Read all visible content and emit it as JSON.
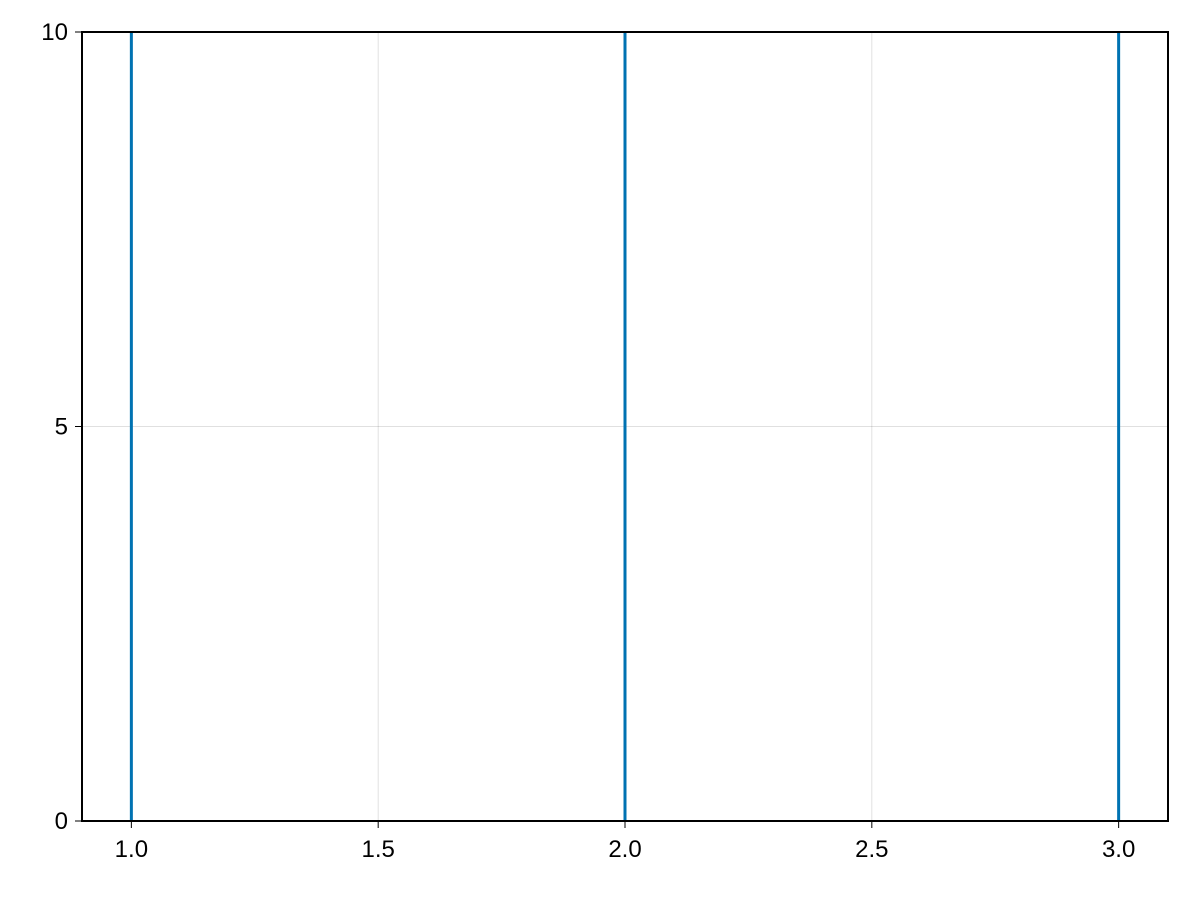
{
  "chart_data": {
    "type": "line",
    "subtype": "vlines",
    "title": "",
    "xlabel": "",
    "ylabel": "",
    "xlim": [
      0.9,
      3.1
    ],
    "ylim": [
      0,
      10
    ],
    "x_ticks": [
      1.0,
      1.5,
      2.0,
      2.5,
      3.0
    ],
    "x_tick_labels": [
      "1.0",
      "1.5",
      "2.0",
      "2.5",
      "3.0"
    ],
    "y_ticks": [
      0,
      5,
      10
    ],
    "y_tick_labels": [
      "0",
      "5",
      "10"
    ],
    "grid": true,
    "series": [
      {
        "x": [
          1,
          2,
          3
        ],
        "color": "#0072b2"
      }
    ]
  }
}
